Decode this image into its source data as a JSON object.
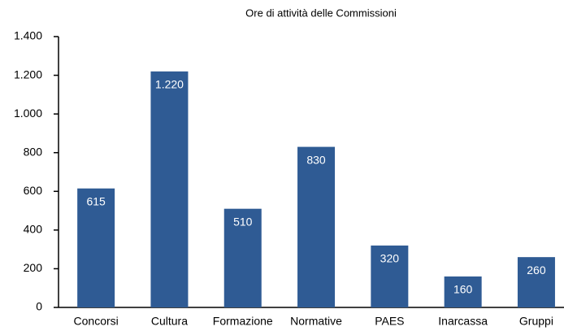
{
  "chart_data": {
    "type": "bar",
    "title": "Ore di attività delle Commissioni",
    "categories": [
      "Concorsi",
      "Cultura",
      "Formazione",
      "Normative",
      "PAES",
      "Inarcassa",
      "Gruppi"
    ],
    "values": [
      615,
      1220,
      510,
      830,
      320,
      160,
      260
    ],
    "value_labels": [
      "615",
      "1.220",
      "510",
      "830",
      "320",
      "160",
      "260"
    ],
    "color": "#2f5b94",
    "ylim": [
      0,
      1400
    ],
    "yticks": [
      0,
      200,
      400,
      600,
      800,
      {
        "value": 1000,
        "label": "1.000"
      },
      {
        "value": 1200,
        "label": "1.200"
      },
      {
        "value": 1400,
        "label": "1.400"
      }
    ],
    "grid": false
  }
}
